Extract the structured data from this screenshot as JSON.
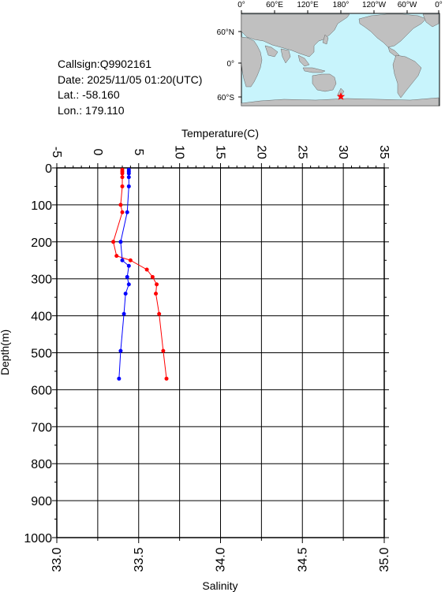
{
  "station": {
    "callsign": "Callsign:Q9902161",
    "date": "Date:  2025/11/05 01:20(UTC)",
    "lat": "Lat.:  -58.160",
    "lon": "Lon.:  179.110"
  },
  "map": {
    "top_labels": [
      "0°",
      "60°E",
      "120°E",
      "180°",
      "120°W",
      "60°W",
      "0°"
    ],
    "side_labels": [
      "60°N",
      "0°",
      "60°S"
    ],
    "marker": {
      "lat": -58.16,
      "lon": 179.11,
      "symbol": "star"
    },
    "colors": {
      "ocean": "#c8f4fc",
      "land": "#c0c0c0",
      "marker": "#ff0000"
    }
  },
  "chart_data": {
    "type": "line",
    "top_axis": {
      "label": "Temperature(C)",
      "range": [
        -5,
        35
      ],
      "ticks": [
        "-5",
        "0",
        "5",
        "10",
        "15",
        "20",
        "25",
        "30",
        "35"
      ]
    },
    "bottom_axis": {
      "label": "Salinity",
      "range": [
        33.0,
        35.0
      ],
      "ticks": [
        "33.0",
        "33.5",
        "34.0",
        "34.5",
        "35.0"
      ]
    },
    "y_axis": {
      "label": "Depth(m)",
      "range": [
        0,
        1000
      ],
      "inverted": true,
      "ticks": [
        "0",
        "100",
        "200",
        "300",
        "400",
        "500",
        "600",
        "700",
        "800",
        "900",
        "1000"
      ]
    },
    "grid": true,
    "series": [
      {
        "quantity": "temperature",
        "axis": "top",
        "color": "#ff0000",
        "points": [
          [
            3.0,
            5
          ],
          [
            3.0,
            10
          ],
          [
            3.0,
            15
          ],
          [
            3.0,
            25
          ],
          [
            3.0,
            50
          ],
          [
            2.8,
            100
          ],
          [
            3.0,
            120
          ],
          [
            1.9,
            200
          ],
          [
            2.3,
            238
          ],
          [
            4.0,
            250
          ],
          [
            6.0,
            275
          ],
          [
            6.7,
            295
          ],
          [
            7.2,
            315
          ],
          [
            7.1,
            340
          ],
          [
            7.5,
            395
          ],
          [
            8.0,
            495
          ],
          [
            8.4,
            570
          ]
        ]
      },
      {
        "quantity": "salinity",
        "axis": "bottom",
        "color": "#0000ff",
        "points": [
          [
            33.44,
            5
          ],
          [
            33.44,
            10
          ],
          [
            33.44,
            15
          ],
          [
            33.44,
            25
          ],
          [
            33.44,
            50
          ],
          [
            33.43,
            120
          ],
          [
            33.39,
            200
          ],
          [
            33.4,
            250
          ],
          [
            33.44,
            265
          ],
          [
            33.43,
            295
          ],
          [
            33.44,
            315
          ],
          [
            33.42,
            340
          ],
          [
            33.41,
            395
          ],
          [
            33.39,
            495
          ],
          [
            33.38,
            570
          ]
        ]
      }
    ]
  }
}
